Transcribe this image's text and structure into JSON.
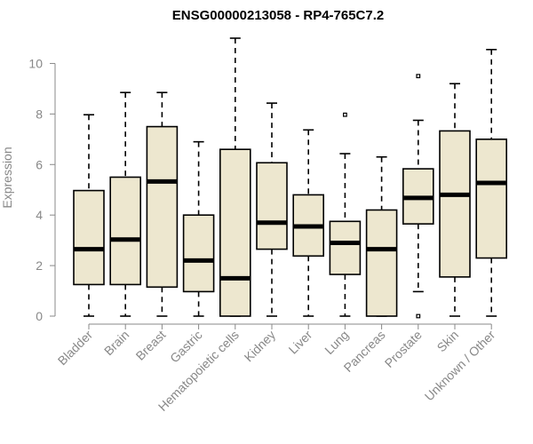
{
  "chart_data": {
    "type": "boxplot",
    "title": "ENSG00000213058 - RP4-765C7.2",
    "xlabel": "",
    "ylabel": "Expression",
    "ylim": [
      0,
      11
    ],
    "yticks": [
      0,
      2,
      4,
      6,
      8,
      10
    ],
    "grid": false,
    "box_color": "#ede7cf",
    "categories": [
      "Bladder",
      "Brain",
      "Breast",
      "Gastric",
      "Hematopoietic cells",
      "Kidney",
      "Liver",
      "Lung",
      "Pancreas",
      "Prostate",
      "Skin",
      "Unknown / Other"
    ],
    "boxes": [
      {
        "min": 0,
        "q1": 1.25,
        "median": 2.65,
        "q3": 4.97,
        "max": 7.97,
        "outliers": []
      },
      {
        "min": 0,
        "q1": 1.25,
        "median": 3.03,
        "q3": 5.5,
        "max": 8.85,
        "outliers": []
      },
      {
        "min": 0,
        "q1": 1.15,
        "median": 5.33,
        "q3": 7.5,
        "max": 8.85,
        "outliers": []
      },
      {
        "min": 0,
        "q1": 0.97,
        "median": 2.2,
        "q3": 4.0,
        "max": 6.9,
        "outliers": []
      },
      {
        "min": 0,
        "q1": 0.0,
        "median": 1.5,
        "q3": 6.6,
        "max": 11.0,
        "outliers": []
      },
      {
        "min": 0,
        "q1": 2.65,
        "median": 3.7,
        "q3": 6.07,
        "max": 8.43,
        "outliers": []
      },
      {
        "min": 0,
        "q1": 2.38,
        "median": 3.55,
        "q3": 4.8,
        "max": 7.37,
        "outliers": []
      },
      {
        "min": 0,
        "q1": 1.65,
        "median": 2.9,
        "q3": 3.75,
        "max": 6.43,
        "outliers": [
          7.97
        ]
      },
      {
        "min": 0,
        "q1": 0.0,
        "median": 2.65,
        "q3": 4.2,
        "max": 6.3,
        "outliers": []
      },
      {
        "min": 0.97,
        "q1": 3.65,
        "median": 4.68,
        "q3": 5.83,
        "max": 7.75,
        "outliers": [
          9.5,
          0.0
        ]
      },
      {
        "min": 0,
        "q1": 1.55,
        "median": 4.8,
        "q3": 7.33,
        "max": 9.2,
        "outliers": []
      },
      {
        "min": 0,
        "q1": 2.3,
        "median": 5.27,
        "q3": 7.0,
        "max": 10.55,
        "outliers": []
      }
    ]
  }
}
